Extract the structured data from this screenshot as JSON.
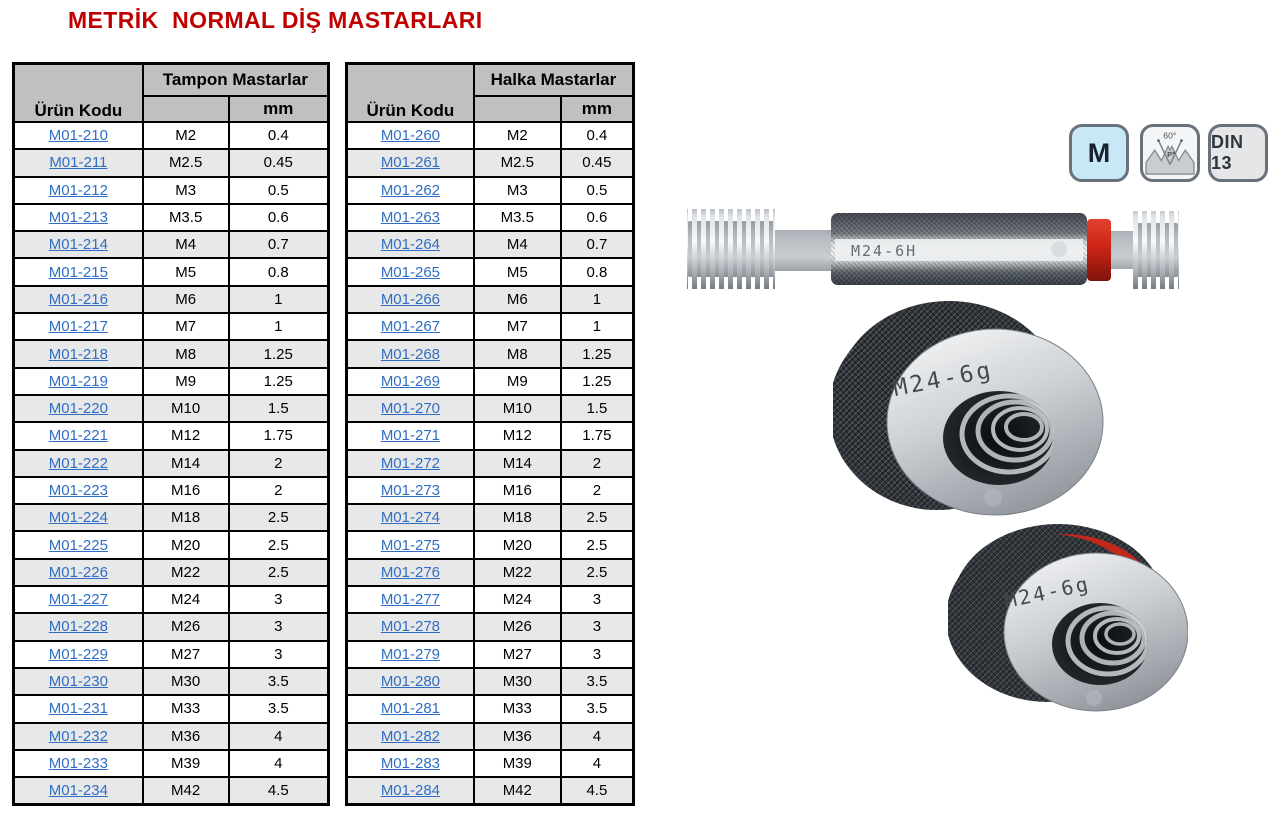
{
  "title": "METRİK  NORMAL DİŞ MASTARLARI",
  "badges": {
    "metric_label": "M",
    "thread_angle": "60°",
    "thread_pitch_label": "P",
    "standard": "DIN 13"
  },
  "images": {
    "plug_gauge_marking": "M24-6H",
    "ring_gauge_go_marking": "M24-6g",
    "ring_gauge_nogo_marking": "M24-6g"
  },
  "colors": {
    "title_red": "#C00000",
    "link_blue": "#2F6EC4",
    "header_gray": "#C0C0C0",
    "row_alt_gray": "#E8E8E8",
    "nogo_stripe_red": "#C9281A",
    "badge_blue": "#C8E8F7"
  },
  "tables": {
    "plug": {
      "group_header": "Tampon Mastarlar",
      "col_code": "Ürün Kodu",
      "col_mm": "mm",
      "rows": [
        {
          "code": "M01-210",
          "size": "M2",
          "mm": "0.4"
        },
        {
          "code": "M01-211",
          "size": "M2.5",
          "mm": "0.45"
        },
        {
          "code": "M01-212",
          "size": "M3",
          "mm": "0.5"
        },
        {
          "code": "M01-213",
          "size": "M3.5",
          "mm": "0.6"
        },
        {
          "code": "M01-214",
          "size": "M4",
          "mm": "0.7"
        },
        {
          "code": "M01-215",
          "size": "M5",
          "mm": "0.8"
        },
        {
          "code": "M01-216",
          "size": "M6",
          "mm": "1"
        },
        {
          "code": "M01-217",
          "size": "M7",
          "mm": "1"
        },
        {
          "code": "M01-218",
          "size": "M8",
          "mm": "1.25"
        },
        {
          "code": "M01-219",
          "size": "M9",
          "mm": "1.25"
        },
        {
          "code": "M01-220",
          "size": "M10",
          "mm": "1.5"
        },
        {
          "code": "M01-221",
          "size": "M12",
          "mm": "1.75"
        },
        {
          "code": "M01-222",
          "size": "M14",
          "mm": "2"
        },
        {
          "code": "M01-223",
          "size": "M16",
          "mm": "2"
        },
        {
          "code": "M01-224",
          "size": "M18",
          "mm": "2.5"
        },
        {
          "code": "M01-225",
          "size": "M20",
          "mm": "2.5"
        },
        {
          "code": "M01-226",
          "size": "M22",
          "mm": "2.5"
        },
        {
          "code": "M01-227",
          "size": "M24",
          "mm": "3"
        },
        {
          "code": "M01-228",
          "size": "M26",
          "mm": "3"
        },
        {
          "code": "M01-229",
          "size": "M27",
          "mm": "3"
        },
        {
          "code": "M01-230",
          "size": "M30",
          "mm": "3.5"
        },
        {
          "code": "M01-231",
          "size": "M33",
          "mm": "3.5"
        },
        {
          "code": "M01-232",
          "size": "M36",
          "mm": "4"
        },
        {
          "code": "M01-233",
          "size": "M39",
          "mm": "4"
        },
        {
          "code": "M01-234",
          "size": "M42",
          "mm": "4.5"
        }
      ]
    },
    "ring": {
      "group_header": "Halka Mastarlar",
      "col_code": "Ürün Kodu",
      "col_mm": "mm",
      "rows": [
        {
          "code": "M01-260",
          "size": "M2",
          "mm": "0.4"
        },
        {
          "code": "M01-261",
          "size": "M2.5",
          "mm": "0.45"
        },
        {
          "code": "M01-262",
          "size": "M3",
          "mm": "0.5"
        },
        {
          "code": "M01-263",
          "size": "M3.5",
          "mm": "0.6"
        },
        {
          "code": "M01-264",
          "size": "M4",
          "mm": "0.7"
        },
        {
          "code": "M01-265",
          "size": "M5",
          "mm": "0.8"
        },
        {
          "code": "M01-266",
          "size": "M6",
          "mm": "1"
        },
        {
          "code": "M01-267",
          "size": "M7",
          "mm": "1"
        },
        {
          "code": "M01-268",
          "size": "M8",
          "mm": "1.25"
        },
        {
          "code": "M01-269",
          "size": "M9",
          "mm": "1.25"
        },
        {
          "code": "M01-270",
          "size": "M10",
          "mm": "1.5"
        },
        {
          "code": "M01-271",
          "size": "M12",
          "mm": "1.75"
        },
        {
          "code": "M01-272",
          "size": "M14",
          "mm": "2"
        },
        {
          "code": "M01-273",
          "size": "M16",
          "mm": "2"
        },
        {
          "code": "M01-274",
          "size": "M18",
          "mm": "2.5"
        },
        {
          "code": "M01-275",
          "size": "M20",
          "mm": "2.5"
        },
        {
          "code": "M01-276",
          "size": "M22",
          "mm": "2.5"
        },
        {
          "code": "M01-277",
          "size": "M24",
          "mm": "3"
        },
        {
          "code": "M01-278",
          "size": "M26",
          "mm": "3"
        },
        {
          "code": "M01-279",
          "size": "M27",
          "mm": "3"
        },
        {
          "code": "M01-280",
          "size": "M30",
          "mm": "3.5"
        },
        {
          "code": "M01-281",
          "size": "M33",
          "mm": "3.5"
        },
        {
          "code": "M01-282",
          "size": "M36",
          "mm": "4"
        },
        {
          "code": "M01-283",
          "size": "M39",
          "mm": "4"
        },
        {
          "code": "M01-284",
          "size": "M42",
          "mm": "4.5"
        }
      ]
    }
  }
}
